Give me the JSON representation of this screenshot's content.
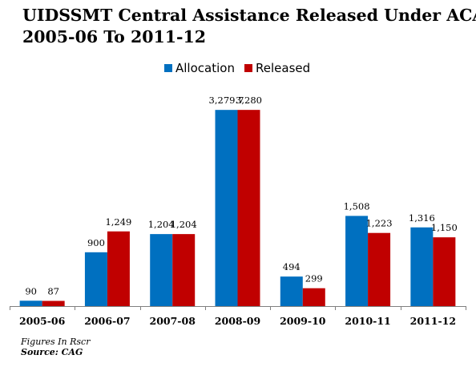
{
  "title_lines": [
    "UIDSSMT Central Assistance Released Under ACA;",
    "2005-06 To 2011-12"
  ],
  "footnote": "Figures In Rscr",
  "source": "Source: CAG",
  "colors": {
    "allocation": "#0070C0",
    "released": "#C00000",
    "axis": "#7F7F7F"
  },
  "chart_data": {
    "type": "bar",
    "categories": [
      "2005-06",
      "2006-07",
      "2007-08",
      "2008-09",
      "2009-10",
      "2010-11",
      "2011-12"
    ],
    "series": [
      {
        "name": "Allocation",
        "values": [
          90,
          900,
          1204,
          3279.7,
          494,
          1508,
          1316
        ],
        "labels": [
          "90",
          "900",
          "1,204",
          "3,279.7",
          "494",
          "1,508",
          "1,316"
        ]
      },
      {
        "name": "Released",
        "values": [
          87,
          1249,
          1204,
          3280,
          299,
          1223,
          1150
        ],
        "labels": [
          "87",
          "1,249",
          "1,204",
          "3,280",
          "299",
          "1,223",
          "1,150"
        ]
      }
    ],
    "ylim": [
      0,
      3550
    ],
    "legend_position": "top-center",
    "grid": false,
    "y_axis_visible": false
  }
}
